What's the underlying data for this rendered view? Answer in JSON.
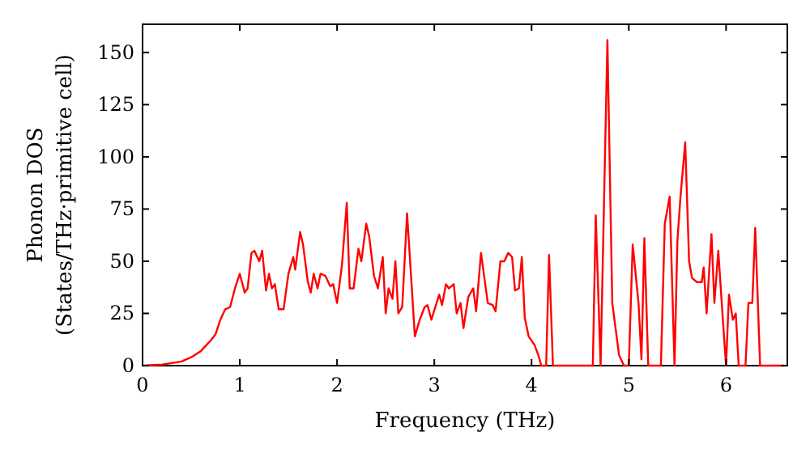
{
  "chart_data": {
    "type": "line",
    "xlabel": "Frequency (THz)",
    "ylabel": "Phonon DOS\n(States/THz·primitive cell)",
    "xlim": [
      0,
      6.63
    ],
    "ylim": [
      0,
      163.5
    ],
    "xticks": [
      0,
      1,
      2,
      3,
      4,
      5,
      6
    ],
    "yticks": [
      0,
      25,
      50,
      75,
      100,
      125,
      150
    ],
    "grid": false,
    "marker": "none",
    "line_style": "solid",
    "series": [
      {
        "color": "#ff0000",
        "x": [
          0,
          0.2,
          0.4,
          0.5,
          0.6,
          0.7,
          0.75,
          0.8,
          0.85,
          0.9,
          0.95,
          1.0,
          1.05,
          1.08,
          1.12,
          1.15,
          1.2,
          1.23,
          1.27,
          1.3,
          1.33,
          1.36,
          1.4,
          1.45,
          1.5,
          1.55,
          1.57,
          1.62,
          1.65,
          1.7,
          1.73,
          1.76,
          1.8,
          1.83,
          1.88,
          1.93,
          1.96,
          2.0,
          2.05,
          2.1,
          2.13,
          2.17,
          2.22,
          2.25,
          2.3,
          2.33,
          2.38,
          2.42,
          2.47,
          2.5,
          2.53,
          2.57,
          2.6,
          2.63,
          2.67,
          2.72,
          2.8,
          2.85,
          2.9,
          2.93,
          2.97,
          3.05,
          3.08,
          3.12,
          3.15,
          3.2,
          3.23,
          3.27,
          3.3,
          3.35,
          3.4,
          3.43,
          3.48,
          3.55,
          3.6,
          3.63,
          3.68,
          3.72,
          3.76,
          3.8,
          3.83,
          3.87,
          3.9,
          3.93,
          3.97,
          4.03,
          4.07,
          4.1,
          4.15,
          4.18,
          4.22,
          4.6,
          4.63,
          4.66,
          4.71,
          4.78,
          4.83,
          4.9,
          4.95,
          5.0,
          5.04,
          5.1,
          5.13,
          5.16,
          5.2,
          5.33,
          5.37,
          5.42,
          5.47,
          5.5,
          5.53,
          5.58,
          5.62,
          5.65,
          5.7,
          5.75,
          5.77,
          5.8,
          5.85,
          5.88,
          5.92,
          5.97,
          6.0,
          6.03,
          6.07,
          6.1,
          6.13,
          6.2,
          6.23,
          6.27,
          6.3,
          6.35,
          6.6
        ],
        "values": [
          0,
          0.5,
          2,
          4,
          7,
          12,
          15,
          22,
          27,
          28,
          37,
          44,
          35,
          37,
          54,
          55,
          50,
          55,
          36,
          44,
          37,
          39,
          27,
          27,
          44,
          52,
          46,
          64,
          58,
          40,
          35,
          44,
          37,
          44,
          43,
          38,
          39,
          30,
          48,
          78,
          37,
          37,
          56,
          50,
          68,
          62,
          43,
          37,
          52,
          25,
          37,
          32,
          50,
          25,
          28,
          73,
          14,
          22,
          28,
          29,
          22,
          34,
          29,
          39,
          37,
          39,
          25,
          30,
          18,
          33,
          37,
          26,
          54,
          30,
          29,
          26,
          50,
          50,
          54,
          52,
          36,
          37,
          52,
          23,
          14,
          10,
          5,
          0,
          0,
          53,
          0,
          0,
          0,
          72,
          0,
          156,
          30,
          5,
          0,
          0,
          58,
          30,
          3,
          61,
          0,
          0,
          68,
          81,
          0,
          60,
          80,
          107,
          50,
          42,
          40,
          40,
          47,
          25,
          63,
          30,
          55,
          20,
          0,
          34,
          22,
          25,
          0,
          0,
          30,
          30,
          66,
          0,
          0
        ]
      }
    ]
  }
}
